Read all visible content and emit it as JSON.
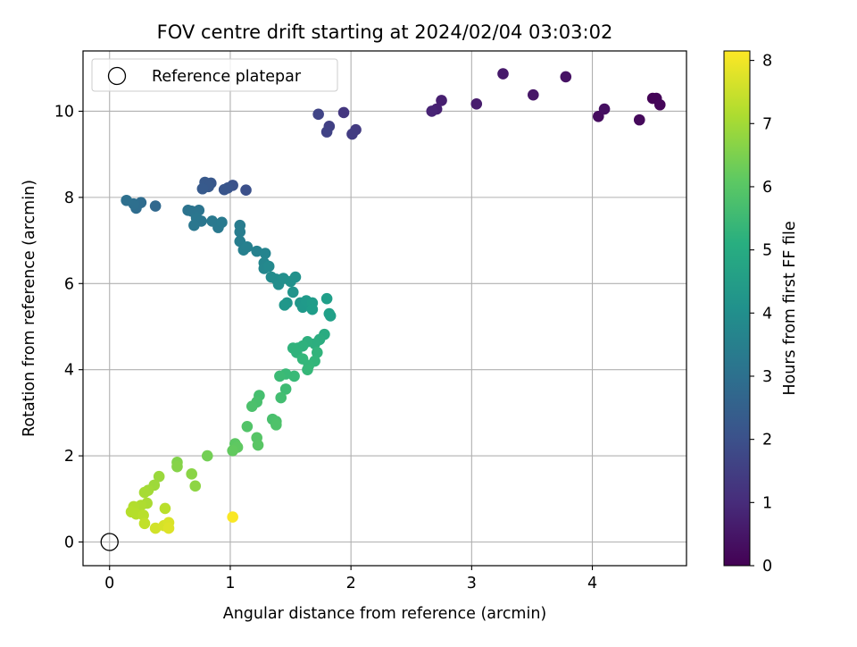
{
  "chart_data": {
    "type": "scatter",
    "title": "FOV centre drift starting at 2024/02/04 03:03:02",
    "xlabel": "Angular distance from reference (arcmin)",
    "ylabel": "Rotation from reference (arcmin)",
    "xlim": [
      -0.22,
      4.78
    ],
    "ylim": [
      -0.55,
      11.4
    ],
    "xticks": [
      0,
      1,
      2,
      3,
      4
    ],
    "yticks": [
      0,
      2,
      4,
      6,
      8,
      10
    ],
    "grid": true,
    "legend": {
      "position": "top-left",
      "entries": [
        "Reference platepar"
      ]
    },
    "reference_point": {
      "x": 0,
      "y": 0,
      "label": "Reference platepar"
    },
    "colorbar": {
      "label": "Hours from first FF file",
      "range": [
        0,
        8.15
      ],
      "ticks": [
        0,
        1,
        2,
        3,
        4,
        5,
        6,
        7,
        8
      ],
      "colormap": "viridis"
    },
    "points": [
      {
        "x": 4.5,
        "y": 10.3,
        "c": 0.05
      },
      {
        "x": 4.53,
        "y": 10.3,
        "c": 0.08
      },
      {
        "x": 4.56,
        "y": 10.15,
        "c": 0.12
      },
      {
        "x": 4.39,
        "y": 9.8,
        "c": 0.18
      },
      {
        "x": 4.05,
        "y": 9.88,
        "c": 0.25
      },
      {
        "x": 4.1,
        "y": 10.05,
        "c": 0.32
      },
      {
        "x": 3.78,
        "y": 10.8,
        "c": 0.4
      },
      {
        "x": 3.51,
        "y": 10.38,
        "c": 0.48
      },
      {
        "x": 3.26,
        "y": 10.87,
        "c": 0.55
      },
      {
        "x": 3.04,
        "y": 10.17,
        "c": 0.62
      },
      {
        "x": 2.75,
        "y": 10.25,
        "c": 0.7
      },
      {
        "x": 2.71,
        "y": 10.05,
        "c": 0.75
      },
      {
        "x": 2.67,
        "y": 10.0,
        "c": 0.82
      },
      {
        "x": 1.94,
        "y": 9.97,
        "c": 1.3
      },
      {
        "x": 2.04,
        "y": 9.57,
        "c": 1.4
      },
      {
        "x": 2.01,
        "y": 9.47,
        "c": 1.45
      },
      {
        "x": 1.82,
        "y": 9.65,
        "c": 1.55
      },
      {
        "x": 1.8,
        "y": 9.52,
        "c": 1.6
      },
      {
        "x": 1.73,
        "y": 9.93,
        "c": 1.65
      },
      {
        "x": 1.13,
        "y": 8.17,
        "c": 2.0
      },
      {
        "x": 1.02,
        "y": 8.28,
        "c": 2.05
      },
      {
        "x": 0.98,
        "y": 8.22,
        "c": 2.1
      },
      {
        "x": 0.95,
        "y": 8.18,
        "c": 2.15
      },
      {
        "x": 0.84,
        "y": 8.33,
        "c": 2.2
      },
      {
        "x": 0.79,
        "y": 8.35,
        "c": 2.25
      },
      {
        "x": 0.82,
        "y": 8.25,
        "c": 2.25
      },
      {
        "x": 0.77,
        "y": 8.2,
        "c": 2.3
      },
      {
        "x": 0.38,
        "y": 7.8,
        "c": 2.75
      },
      {
        "x": 0.26,
        "y": 7.88,
        "c": 2.85
      },
      {
        "x": 0.22,
        "y": 7.75,
        "c": 2.9
      },
      {
        "x": 0.2,
        "y": 7.85,
        "c": 2.95
      },
      {
        "x": 0.14,
        "y": 7.93,
        "c": 3.0
      },
      {
        "x": 0.65,
        "y": 7.7,
        "c": 3.1
      },
      {
        "x": 0.68,
        "y": 7.68,
        "c": 3.15
      },
      {
        "x": 0.74,
        "y": 7.7,
        "c": 3.15
      },
      {
        "x": 0.72,
        "y": 7.52,
        "c": 3.2
      },
      {
        "x": 0.76,
        "y": 7.45,
        "c": 3.2
      },
      {
        "x": 0.7,
        "y": 7.35,
        "c": 3.25
      },
      {
        "x": 0.85,
        "y": 7.45,
        "c": 3.3
      },
      {
        "x": 0.9,
        "y": 7.3,
        "c": 3.3
      },
      {
        "x": 0.93,
        "y": 7.42,
        "c": 3.35
      },
      {
        "x": 1.08,
        "y": 7.35,
        "c": 3.4
      },
      {
        "x": 1.08,
        "y": 7.2,
        "c": 3.45
      },
      {
        "x": 1.08,
        "y": 6.98,
        "c": 3.5
      },
      {
        "x": 1.11,
        "y": 6.78,
        "c": 3.55
      },
      {
        "x": 1.14,
        "y": 6.85,
        "c": 3.55
      },
      {
        "x": 1.22,
        "y": 6.75,
        "c": 3.6
      },
      {
        "x": 1.29,
        "y": 6.7,
        "c": 3.7
      },
      {
        "x": 1.28,
        "y": 6.48,
        "c": 3.75
      },
      {
        "x": 1.28,
        "y": 6.35,
        "c": 3.8
      },
      {
        "x": 1.32,
        "y": 6.4,
        "c": 3.85
      },
      {
        "x": 1.34,
        "y": 6.15,
        "c": 3.9
      },
      {
        "x": 1.38,
        "y": 6.1,
        "c": 3.95
      },
      {
        "x": 1.4,
        "y": 5.98,
        "c": 4.0
      },
      {
        "x": 1.44,
        "y": 6.12,
        "c": 4.05
      },
      {
        "x": 1.5,
        "y": 6.05,
        "c": 4.1
      },
      {
        "x": 1.54,
        "y": 6.15,
        "c": 4.1
      },
      {
        "x": 1.52,
        "y": 5.8,
        "c": 4.2
      },
      {
        "x": 1.47,
        "y": 5.55,
        "c": 4.25
      },
      {
        "x": 1.45,
        "y": 5.5,
        "c": 4.3
      },
      {
        "x": 1.58,
        "y": 5.55,
        "c": 4.3
      },
      {
        "x": 1.6,
        "y": 5.45,
        "c": 4.35
      },
      {
        "x": 1.63,
        "y": 5.6,
        "c": 4.4
      },
      {
        "x": 1.68,
        "y": 5.55,
        "c": 4.45
      },
      {
        "x": 1.68,
        "y": 5.4,
        "c": 4.5
      },
      {
        "x": 1.8,
        "y": 5.65,
        "c": 4.55
      },
      {
        "x": 1.82,
        "y": 5.3,
        "c": 4.6
      },
      {
        "x": 1.83,
        "y": 5.25,
        "c": 4.6
      },
      {
        "x": 1.78,
        "y": 4.82,
        "c": 5.0
      },
      {
        "x": 1.74,
        "y": 4.7,
        "c": 5.05
      },
      {
        "x": 1.7,
        "y": 4.6,
        "c": 5.1
      },
      {
        "x": 1.64,
        "y": 4.65,
        "c": 5.15
      },
      {
        "x": 1.6,
        "y": 4.55,
        "c": 5.2
      },
      {
        "x": 1.56,
        "y": 4.5,
        "c": 5.2
      },
      {
        "x": 1.52,
        "y": 4.5,
        "c": 5.25
      },
      {
        "x": 1.55,
        "y": 4.4,
        "c": 5.25
      },
      {
        "x": 1.72,
        "y": 4.4,
        "c": 5.3
      },
      {
        "x": 1.7,
        "y": 4.2,
        "c": 5.35
      },
      {
        "x": 1.65,
        "y": 4.1,
        "c": 5.4
      },
      {
        "x": 1.64,
        "y": 4.0,
        "c": 5.45
      },
      {
        "x": 1.6,
        "y": 4.25,
        "c": 5.4
      },
      {
        "x": 1.53,
        "y": 3.85,
        "c": 5.5
      },
      {
        "x": 1.46,
        "y": 3.9,
        "c": 5.5
      },
      {
        "x": 1.41,
        "y": 3.85,
        "c": 5.55
      },
      {
        "x": 1.46,
        "y": 3.55,
        "c": 5.6
      },
      {
        "x": 1.42,
        "y": 3.35,
        "c": 5.65
      },
      {
        "x": 1.35,
        "y": 2.85,
        "c": 5.75
      },
      {
        "x": 1.38,
        "y": 2.8,
        "c": 5.8
      },
      {
        "x": 1.38,
        "y": 2.72,
        "c": 5.85
      },
      {
        "x": 1.24,
        "y": 3.4,
        "c": 5.7
      },
      {
        "x": 1.22,
        "y": 3.25,
        "c": 5.75
      },
      {
        "x": 1.18,
        "y": 3.15,
        "c": 5.8
      },
      {
        "x": 1.14,
        "y": 2.68,
        "c": 5.9
      },
      {
        "x": 1.22,
        "y": 2.42,
        "c": 5.95
      },
      {
        "x": 1.23,
        "y": 2.25,
        "c": 6.0
      },
      {
        "x": 1.04,
        "y": 2.28,
        "c": 6.05
      },
      {
        "x": 1.06,
        "y": 2.2,
        "c": 6.1
      },
      {
        "x": 1.02,
        "y": 2.12,
        "c": 6.15
      },
      {
        "x": 0.81,
        "y": 2.0,
        "c": 6.4
      },
      {
        "x": 0.56,
        "y": 1.85,
        "c": 6.6
      },
      {
        "x": 0.56,
        "y": 1.75,
        "c": 6.65
      },
      {
        "x": 0.68,
        "y": 1.58,
        "c": 6.7
      },
      {
        "x": 0.71,
        "y": 1.3,
        "c": 6.75
      },
      {
        "x": 0.41,
        "y": 1.52,
        "c": 6.9
      },
      {
        "x": 0.37,
        "y": 1.32,
        "c": 6.95
      },
      {
        "x": 0.32,
        "y": 1.2,
        "c": 7.0
      },
      {
        "x": 0.29,
        "y": 1.15,
        "c": 7.05
      },
      {
        "x": 0.31,
        "y": 0.9,
        "c": 7.1
      },
      {
        "x": 0.26,
        "y": 0.85,
        "c": 7.15
      },
      {
        "x": 0.2,
        "y": 0.82,
        "c": 7.2
      },
      {
        "x": 0.18,
        "y": 0.7,
        "c": 7.25
      },
      {
        "x": 0.22,
        "y": 0.65,
        "c": 7.25
      },
      {
        "x": 0.28,
        "y": 0.62,
        "c": 7.3
      },
      {
        "x": 0.46,
        "y": 0.78,
        "c": 7.3
      },
      {
        "x": 0.29,
        "y": 0.43,
        "c": 7.4
      },
      {
        "x": 0.38,
        "y": 0.32,
        "c": 7.6
      },
      {
        "x": 0.45,
        "y": 0.38,
        "c": 7.65
      },
      {
        "x": 0.49,
        "y": 0.45,
        "c": 7.7
      },
      {
        "x": 0.49,
        "y": 0.32,
        "c": 7.75
      },
      {
        "x": 1.02,
        "y": 0.58,
        "c": 8.1
      }
    ]
  }
}
